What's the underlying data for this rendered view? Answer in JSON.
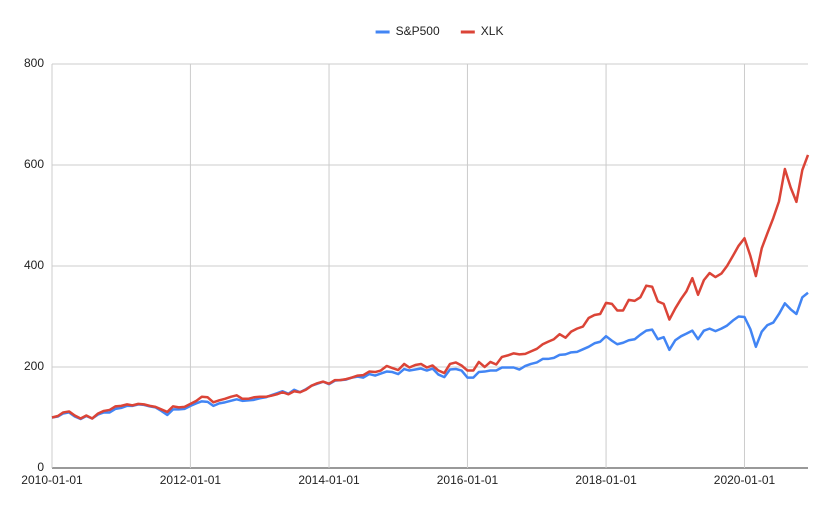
{
  "chart_data": {
    "type": "line",
    "x": [
      "2010-01-01",
      "2010-02-01",
      "2010-03-01",
      "2010-04-01",
      "2010-05-01",
      "2010-06-01",
      "2010-07-01",
      "2010-08-01",
      "2010-09-01",
      "2010-10-01",
      "2010-11-01",
      "2010-12-01",
      "2011-01-01",
      "2011-02-01",
      "2011-03-01",
      "2011-04-01",
      "2011-05-01",
      "2011-06-01",
      "2011-07-01",
      "2011-08-01",
      "2011-09-01",
      "2011-10-01",
      "2011-11-01",
      "2011-12-01",
      "2012-01-01",
      "2012-02-01",
      "2012-03-01",
      "2012-04-01",
      "2012-05-01",
      "2012-06-01",
      "2012-07-01",
      "2012-08-01",
      "2012-09-01",
      "2012-10-01",
      "2012-11-01",
      "2012-12-01",
      "2013-01-01",
      "2013-02-01",
      "2013-03-01",
      "2013-04-01",
      "2013-05-01",
      "2013-06-01",
      "2013-07-01",
      "2013-08-01",
      "2013-09-01",
      "2013-10-01",
      "2013-11-01",
      "2013-12-01",
      "2014-01-01",
      "2014-02-01",
      "2014-03-01",
      "2014-04-01",
      "2014-05-01",
      "2014-06-01",
      "2014-07-01",
      "2014-08-01",
      "2014-09-01",
      "2014-10-01",
      "2014-11-01",
      "2014-12-01",
      "2015-01-01",
      "2015-02-01",
      "2015-03-01",
      "2015-04-01",
      "2015-05-01",
      "2015-06-01",
      "2015-07-01",
      "2015-08-01",
      "2015-09-01",
      "2015-10-01",
      "2015-11-01",
      "2015-12-01",
      "2016-01-01",
      "2016-02-01",
      "2016-03-01",
      "2016-04-01",
      "2016-05-01",
      "2016-06-01",
      "2016-07-01",
      "2016-08-01",
      "2016-09-01",
      "2016-10-01",
      "2016-11-01",
      "2016-12-01",
      "2017-01-01",
      "2017-02-01",
      "2017-03-01",
      "2017-04-01",
      "2017-05-01",
      "2017-06-01",
      "2017-07-01",
      "2017-08-01",
      "2017-09-01",
      "2017-10-01",
      "2017-11-01",
      "2017-12-01",
      "2018-01-01",
      "2018-02-01",
      "2018-03-01",
      "2018-04-01",
      "2018-05-01",
      "2018-06-01",
      "2018-07-01",
      "2018-08-01",
      "2018-09-01",
      "2018-10-01",
      "2018-11-01",
      "2018-12-01",
      "2019-01-01",
      "2019-02-01",
      "2019-03-01",
      "2019-04-01",
      "2019-05-01",
      "2019-06-01",
      "2019-07-01",
      "2019-08-01",
      "2019-09-01",
      "2019-10-01",
      "2019-11-01",
      "2019-12-01",
      "2020-01-01",
      "2020-02-01",
      "2020-03-01",
      "2020-04-01",
      "2020-05-01",
      "2020-06-01",
      "2020-07-01",
      "2020-08-01",
      "2020-09-01",
      "2020-10-01",
      "2020-11-01",
      "2020-12-01"
    ],
    "series": [
      {
        "name": "S&P500",
        "color": "#4285f4",
        "values": [
          100,
          102,
          108,
          110,
          102,
          97,
          103,
          98,
          106,
          110,
          110,
          117,
          119,
          123,
          123,
          126,
          125,
          122,
          120,
          113,
          105,
          116,
          116,
          117,
          123,
          128,
          132,
          131,
          123,
          128,
          130,
          133,
          136,
          133,
          134,
          135,
          138,
          140,
          144,
          148,
          152,
          147,
          155,
          150,
          156,
          163,
          167,
          171,
          166,
          173,
          174,
          175,
          179,
          181,
          179,
          186,
          183,
          187,
          191,
          190,
          186,
          196,
          193,
          195,
          197,
          193,
          197,
          185,
          180,
          195,
          196,
          193,
          179,
          179,
          190,
          191,
          193,
          193,
          199,
          199,
          199,
          195,
          202,
          206,
          209,
          216,
          216,
          218,
          224,
          225,
          229,
          230,
          235,
          240,
          247,
          250,
          261,
          252,
          245,
          248,
          253,
          255,
          264,
          272,
          274,
          255,
          259,
          234,
          253,
          261,
          266,
          272,
          255,
          272,
          276,
          271,
          276,
          282,
          292,
          300,
          299,
          275,
          240,
          270,
          283,
          288,
          305,
          326,
          314,
          305,
          338,
          347
        ]
      },
      {
        "name": "XLK",
        "color": "#db4437",
        "values": [
          100,
          103,
          110,
          112,
          104,
          98,
          104,
          98,
          108,
          113,
          115,
          122,
          123,
          126,
          124,
          127,
          126,
          123,
          121,
          116,
          111,
          122,
          120,
          121,
          127,
          133,
          141,
          140,
          130,
          134,
          137,
          141,
          144,
          137,
          137,
          140,
          141,
          141,
          143,
          146,
          150,
          146,
          152,
          150,
          155,
          163,
          168,
          171,
          167,
          174,
          174,
          176,
          179,
          183,
          184,
          191,
          190,
          193,
          202,
          198,
          194,
          206,
          199,
          204,
          206,
          199,
          203,
          193,
          188,
          206,
          209,
          203,
          193,
          193,
          210,
          200,
          210,
          205,
          220,
          223,
          227,
          225,
          226,
          231,
          236,
          245,
          250,
          255,
          265,
          258,
          270,
          276,
          280,
          297,
          303,
          305,
          327,
          325,
          312,
          312,
          333,
          331,
          338,
          361,
          359,
          330,
          325,
          294,
          316,
          335,
          350,
          376,
          343,
          372,
          386,
          378,
          385,
          400,
          420,
          440,
          455,
          420,
          380,
          435,
          465,
          495,
          528,
          592,
          555,
          527,
          590,
          620
        ]
      }
    ],
    "xlim": [
      "2010-01-01",
      "2020-12-01"
    ],
    "xticks": [
      "2010-01-01",
      "2012-01-01",
      "2014-01-01",
      "2016-01-01",
      "2018-01-01",
      "2020-01-01"
    ],
    "ylim": [
      0,
      800
    ],
    "yticks": [
      0,
      200,
      400,
      600,
      800
    ],
    "grid": true,
    "legend": "top"
  }
}
